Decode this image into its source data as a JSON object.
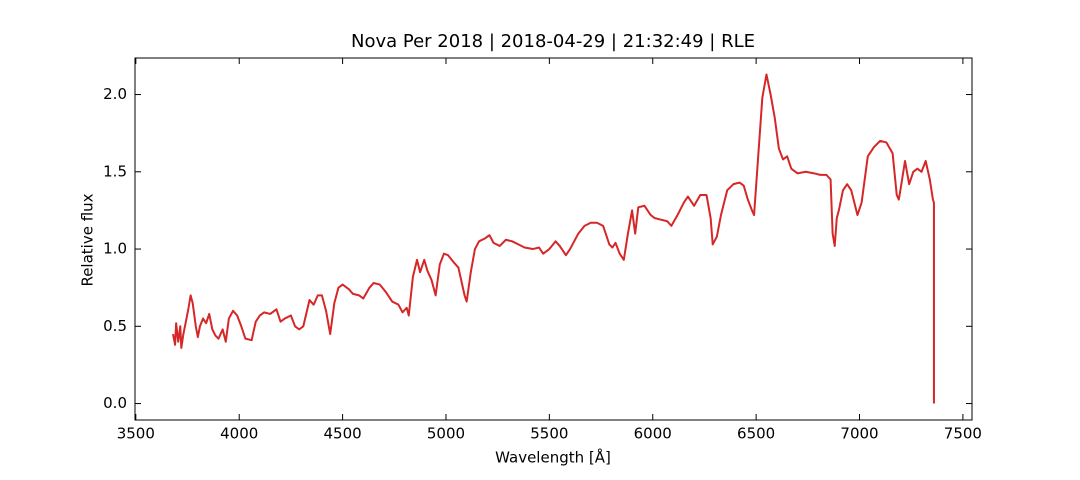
{
  "chart_data": {
    "type": "line",
    "title": "Nova Per 2018 | 2018-04-29 | 21:32:49 | RLE",
    "x_label": "Wavelength [Å]",
    "y_label": "Relative flux",
    "xlim": [
      3496,
      7544
    ],
    "ylim": [
      -0.1065,
      2.2365
    ],
    "xticks": [
      3500,
      4000,
      4500,
      5000,
      5500,
      6000,
      6500,
      7000,
      7500
    ],
    "yticks": [
      {
        "value": 0,
        "label": "0.0"
      },
      0.5,
      {
        "value": 1,
        "label": "1.0"
      },
      1.5,
      {
        "value": 2,
        "label": "2.0"
      }
    ],
    "tick_direction": "in",
    "series": [
      {
        "color": "#d62728",
        "x": [
          3680,
          3690,
          3695,
          3705,
          3715,
          3720,
          3730,
          3745,
          3755,
          3765,
          3775,
          3790,
          3800,
          3810,
          3825,
          3840,
          3855,
          3870,
          3885,
          3900,
          3920,
          3935,
          3950,
          3970,
          3990,
          4010,
          4030,
          4060,
          4080,
          4100,
          4120,
          4150,
          4180,
          4200,
          4220,
          4250,
          4270,
          4290,
          4310,
          4340,
          4360,
          4380,
          4400,
          4420,
          4440,
          4460,
          4480,
          4500,
          4530,
          4550,
          4580,
          4600,
          4630,
          4650,
          4680,
          4710,
          4740,
          4770,
          4790,
          4810,
          4820,
          4840,
          4860,
          4875,
          4895,
          4910,
          4930,
          4950,
          4970,
          4990,
          5010,
          5040,
          5060,
          5090,
          5100,
          5120,
          5140,
          5160,
          5190,
          5210,
          5230,
          5260,
          5290,
          5320,
          5350,
          5380,
          5420,
          5450,
          5470,
          5500,
          5530,
          5550,
          5580,
          5600,
          5640,
          5670,
          5700,
          5730,
          5760,
          5790,
          5805,
          5820,
          5840,
          5860,
          5880,
          5900,
          5915,
          5930,
          5960,
          5990,
          6010,
          6040,
          6070,
          6090,
          6120,
          6150,
          6170,
          6200,
          6230,
          6260,
          6280,
          6290,
          6310,
          6330,
          6360,
          6390,
          6420,
          6440,
          6460,
          6480,
          6490,
          6510,
          6530,
          6550,
          6570,
          6590,
          6610,
          6630,
          6650,
          6670,
          6700,
          6740,
          6780,
          6810,
          6840,
          6860,
          6870,
          6880,
          6890,
          6900,
          6920,
          6940,
          6960,
          6990,
          7010,
          7040,
          7070,
          7100,
          7130,
          7160,
          7180,
          7190,
          7200,
          7220,
          7240,
          7260,
          7280,
          7300,
          7320,
          7340,
          7355,
          7360,
          7360
        ],
        "values": [
          0.45,
          0.38,
          0.52,
          0.4,
          0.5,
          0.36,
          0.45,
          0.55,
          0.62,
          0.7,
          0.65,
          0.5,
          0.43,
          0.5,
          0.55,
          0.52,
          0.58,
          0.48,
          0.44,
          0.42,
          0.48,
          0.4,
          0.55,
          0.6,
          0.57,
          0.5,
          0.42,
          0.41,
          0.53,
          0.57,
          0.59,
          0.58,
          0.61,
          0.53,
          0.55,
          0.57,
          0.5,
          0.48,
          0.5,
          0.67,
          0.64,
          0.7,
          0.7,
          0.6,
          0.45,
          0.65,
          0.75,
          0.77,
          0.74,
          0.71,
          0.7,
          0.68,
          0.75,
          0.78,
          0.77,
          0.72,
          0.66,
          0.64,
          0.59,
          0.62,
          0.57,
          0.82,
          0.93,
          0.85,
          0.93,
          0.86,
          0.8,
          0.7,
          0.9,
          0.97,
          0.96,
          0.91,
          0.88,
          0.7,
          0.66,
          0.85,
          1.0,
          1.05,
          1.07,
          1.09,
          1.04,
          1.02,
          1.06,
          1.05,
          1.03,
          1.01,
          1.0,
          1.01,
          0.97,
          1.0,
          1.05,
          1.02,
          0.96,
          1.0,
          1.1,
          1.15,
          1.17,
          1.17,
          1.15,
          1.03,
          1.01,
          1.04,
          0.97,
          0.93,
          1.1,
          1.25,
          1.1,
          1.27,
          1.28,
          1.22,
          1.2,
          1.19,
          1.18,
          1.15,
          1.22,
          1.3,
          1.34,
          1.28,
          1.35,
          1.35,
          1.2,
          1.03,
          1.08,
          1.22,
          1.38,
          1.42,
          1.43,
          1.41,
          1.32,
          1.25,
          1.22,
          1.6,
          1.98,
          2.13,
          2.0,
          1.85,
          1.65,
          1.58,
          1.6,
          1.52,
          1.49,
          1.5,
          1.49,
          1.48,
          1.48,
          1.45,
          1.1,
          1.02,
          1.2,
          1.25,
          1.38,
          1.42,
          1.38,
          1.22,
          1.3,
          1.6,
          1.66,
          1.7,
          1.69,
          1.62,
          1.35,
          1.32,
          1.4,
          1.57,
          1.42,
          1.5,
          1.52,
          1.5,
          1.57,
          1.45,
          1.32,
          1.3,
          0.0
        ]
      }
    ]
  }
}
